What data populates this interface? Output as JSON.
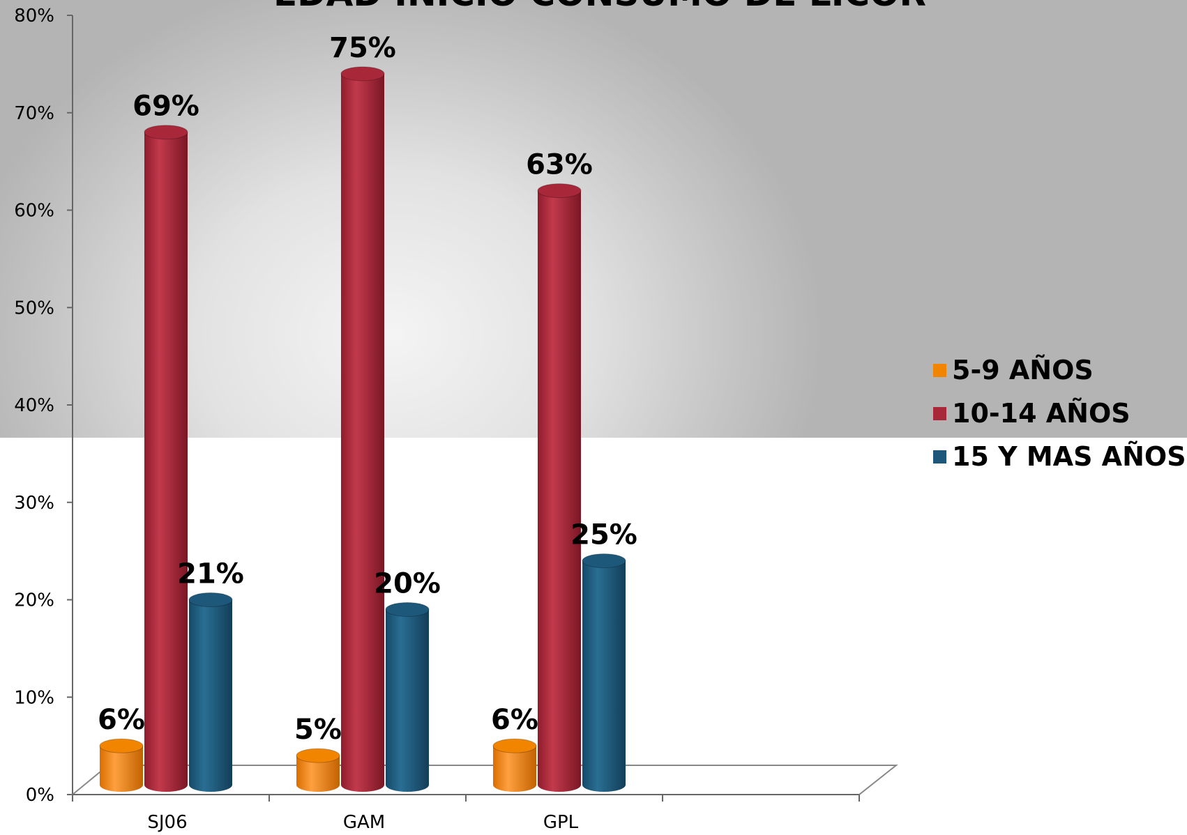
{
  "chart_data": {
    "type": "bar",
    "title": "EDAD INICIO CONSUMO DE LICOR",
    "categories": [
      "SJ06",
      "GAM",
      "GPL"
    ],
    "series": [
      {
        "name": "5-9 AÑOS",
        "values": [
          6,
          5,
          6
        ],
        "labels": [
          "6%",
          "5%",
          "6%"
        ],
        "color": "#f28500"
      },
      {
        "name": "10-14 AÑOS",
        "values": [
          69,
          75,
          63
        ],
        "labels": [
          "69%",
          "75%",
          "63%"
        ],
        "color": "#a8283a"
      },
      {
        "name": "15 Y MAS AÑOS",
        "values": [
          21,
          20,
          25
        ],
        "labels": [
          "21%",
          "20%",
          "25%"
        ],
        "color": "#1d587a"
      }
    ],
    "y_ticks": [
      "0%",
      "10%",
      "20%",
      "30%",
      "40%",
      "50%",
      "60%",
      "70%",
      "80%"
    ],
    "ylim": [
      0,
      80
    ],
    "xlabel": "",
    "ylabel": "",
    "grid": false,
    "legend_position": "right"
  }
}
